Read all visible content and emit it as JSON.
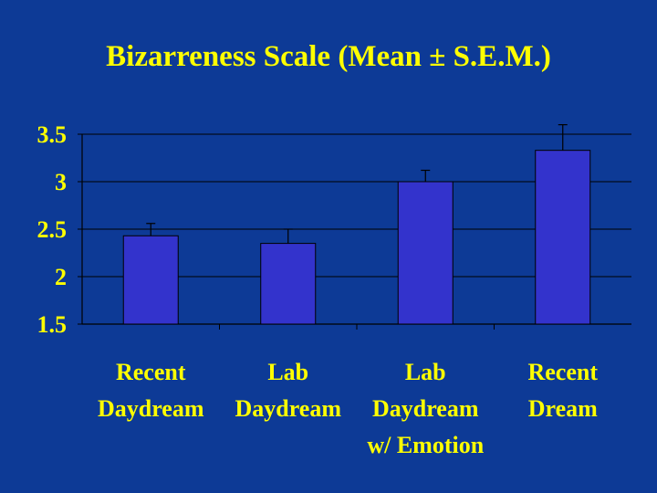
{
  "colors": {
    "background": "#0d3a96",
    "text": "#ffff00",
    "bar_fill": "#3333cc",
    "bar_stroke": "#000000",
    "axis": "#000000",
    "grid": "#000000"
  },
  "chart_data": {
    "type": "bar",
    "title": "Bizarreness Scale (Mean ± S.E.M.)",
    "categories": [
      [
        "Recent",
        "Daydream"
      ],
      [
        "Lab",
        "Daydream"
      ],
      [
        "Lab",
        "Daydream",
        "w/ Emotion"
      ],
      [
        "Recent",
        "Dream"
      ]
    ],
    "values": [
      2.43,
      2.35,
      3.0,
      3.33
    ],
    "errors": [
      0.13,
      0.15,
      0.12,
      0.27
    ],
    "ylim": [
      1.5,
      3.5
    ],
    "yticks": [
      "3.5",
      "3",
      "2.5",
      "2",
      "1.5"
    ],
    "grid": true,
    "legend": "none"
  }
}
